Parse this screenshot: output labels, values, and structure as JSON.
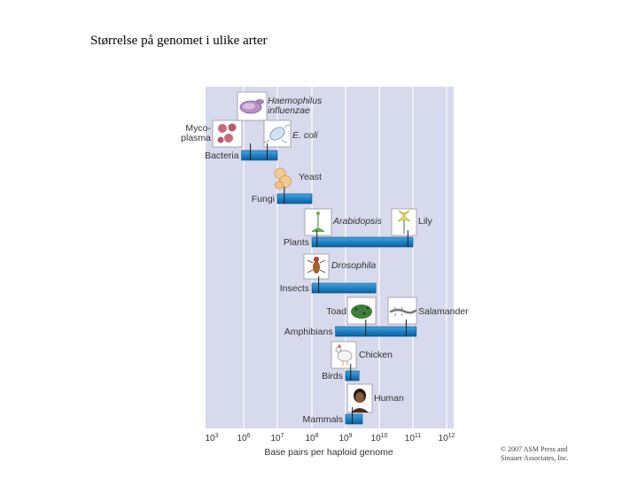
{
  "slide": {
    "title": "Størrelse på genomet i ulike arter",
    "copyright": [
      "© 2007 ASM Press and",
      "Sinauer Associates, Inc."
    ]
  },
  "colors": {
    "panel": "#d7d9ec",
    "bar": "#1b7fc4",
    "bar_edge": "#0b4f86",
    "text": "#333333",
    "grid": "#ffffff"
  },
  "chart_data": {
    "type": "range-bar",
    "title": "Størrelse på genomet i ulike arter",
    "xlabel": "Base pairs per haploid genome",
    "xscale": "log10",
    "xlim": [
      3,
      12
    ],
    "ticks": [
      {
        "base": "10",
        "exp": "3"
      },
      {
        "base": "10",
        "exp": "6"
      },
      {
        "base": "10",
        "exp": "7"
      },
      {
        "base": "10",
        "exp": "8"
      },
      {
        "base": "10",
        "exp": "9"
      },
      {
        "base": "10",
        "exp": "10"
      },
      {
        "base": "10",
        "exp": "11"
      },
      {
        "base": "10",
        "exp": "12"
      }
    ],
    "groups": [
      {
        "label": "Bacteria",
        "range": [
          5.8,
          7.0
        ],
        "markers": [
          6.2,
          6.7
        ]
      },
      {
        "label": "Fungi",
        "range": [
          7.0,
          8.0
        ],
        "markers": [
          7.2
        ]
      },
      {
        "label": "Plants",
        "range": [
          8.0,
          11.0
        ],
        "markers": [
          8.15,
          10.85
        ]
      },
      {
        "label": "Insects",
        "range": [
          8.0,
          9.9
        ],
        "markers": [
          8.2
        ]
      },
      {
        "label": "Amphibians",
        "range": [
          8.7,
          11.1
        ],
        "markers": [
          9.6,
          10.8
        ]
      },
      {
        "label": "Birds",
        "range": [
          9.0,
          9.4
        ],
        "markers": [
          9.15
        ]
      },
      {
        "label": "Mammals",
        "range": [
          9.0,
          9.5
        ],
        "markers": [
          9.2
        ]
      }
    ],
    "species": [
      {
        "label": "Haemophilus influenzae",
        "lines": [
          "Haemophilus",
          "influenzae"
        ],
        "italic": true,
        "log_bp": 6.27
      },
      {
        "label": "Mycoplasma",
        "lines": [
          "Myco-",
          "plasma"
        ],
        "italic": false,
        "log_bp": 5.8
      },
      {
        "label": "E. coli",
        "lines": [
          "E. coli"
        ],
        "italic": true,
        "log_bp": 6.67
      },
      {
        "label": "Yeast",
        "lines": [
          "Yeast"
        ],
        "italic": false,
        "log_bp": 7.1
      },
      {
        "label": "Arabidopsis",
        "lines": [
          "Arabidopsis"
        ],
        "italic": true,
        "log_bp": 8.1
      },
      {
        "label": "Lily",
        "lines": [
          "Lily"
        ],
        "italic": false,
        "log_bp": 11.0
      },
      {
        "label": "Drosophila",
        "lines": [
          "Drosophila"
        ],
        "italic": true,
        "log_bp": 8.2
      },
      {
        "label": "Toad",
        "lines": [
          "Toad"
        ],
        "italic": false,
        "log_bp": 9.6
      },
      {
        "label": "Salamander",
        "lines": [
          "Salamander"
        ],
        "italic": false,
        "log_bp": 10.8
      },
      {
        "label": "Chicken",
        "lines": [
          "Chicken"
        ],
        "italic": false,
        "log_bp": 9.1
      },
      {
        "label": "Human",
        "lines": [
          "Human"
        ],
        "italic": false,
        "log_bp": 9.5
      }
    ]
  }
}
